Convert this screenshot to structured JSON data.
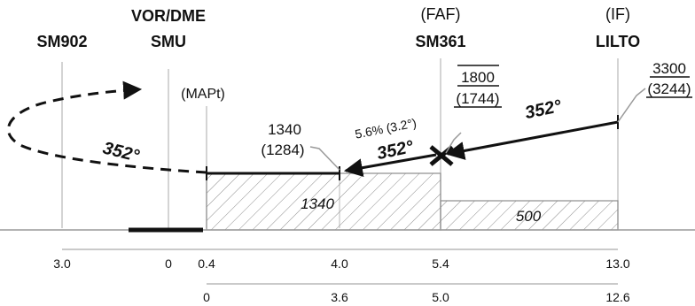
{
  "fixes": {
    "sm902": {
      "name": "SM902"
    },
    "smu": {
      "line1": "VOR/DME",
      "line2": "SMU"
    },
    "mapt": {
      "label": "(MAPt)"
    },
    "sm361": {
      "role": "(FAF)",
      "name": "SM361"
    },
    "lilto": {
      "role": "(IF)",
      "name": "LILTO"
    }
  },
  "headings": {
    "missed_approach": "352°",
    "final": "352°",
    "intermediate": "352°"
  },
  "gradient": "5.6% (3.2°)",
  "altitudes": {
    "stepdown": {
      "alt": "1340",
      "height": "(1284)"
    },
    "faf": {
      "alt": "1800",
      "height": "(1744)"
    },
    "if": {
      "alt": "3300",
      "height": "(3244)"
    }
  },
  "obstacle_clearance": {
    "final": "1340",
    "intermediate": "500"
  },
  "distance_scale_1": [
    "3.0",
    "0",
    "0.4",
    "4.0",
    "5.4",
    "13.0"
  ],
  "distance_scale_2": [
    "0",
    "3.6",
    "5.0",
    "12.6"
  ],
  "colors": {
    "ink": "#111111",
    "guide": "#b8b8b8",
    "hatch": "#8c8c8c"
  }
}
